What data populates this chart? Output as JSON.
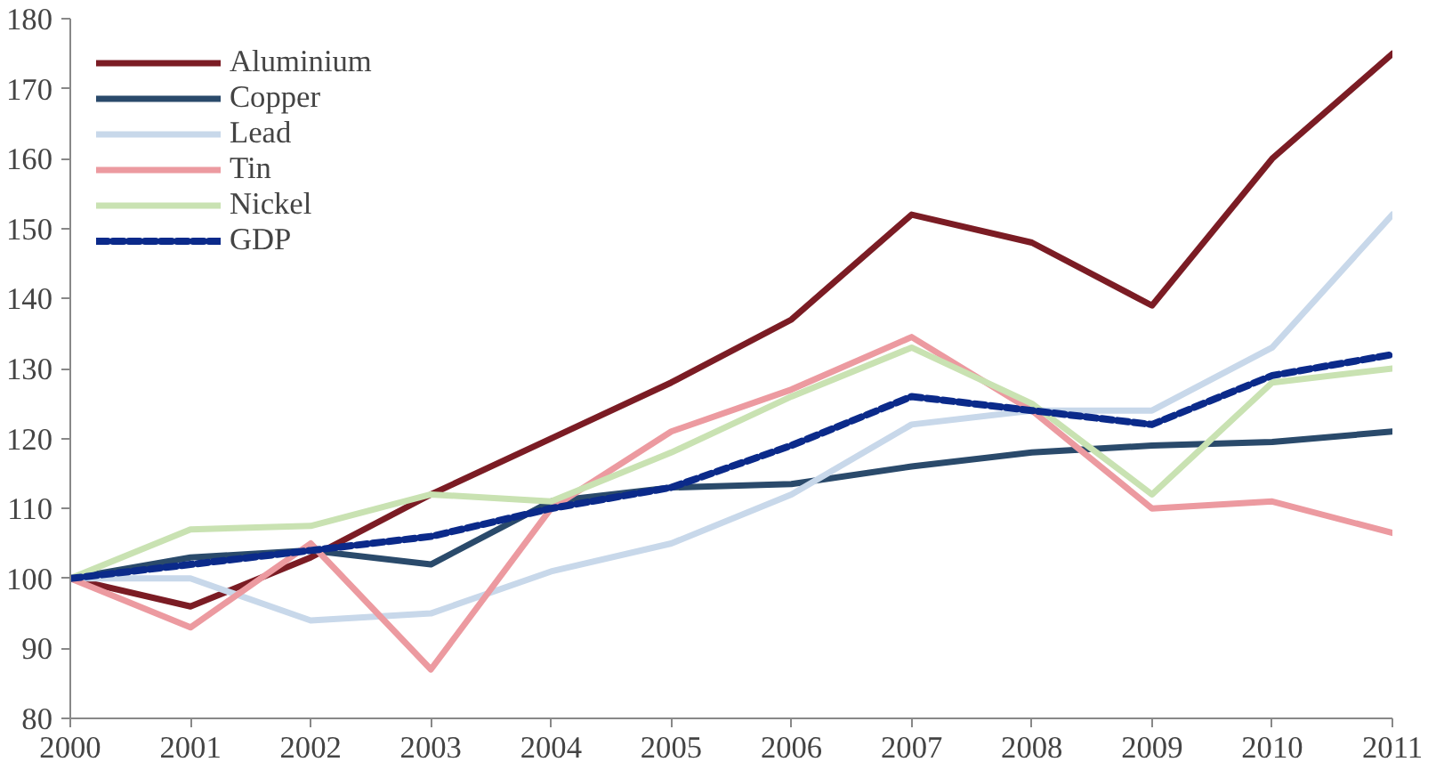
{
  "chart_data": {
    "type": "line",
    "x": [
      2000,
      2001,
      2002,
      2003,
      2004,
      2005,
      2006,
      2007,
      2008,
      2009,
      2010,
      2011
    ],
    "series": [
      {
        "name": "Aluminium",
        "color": "#7b1c24",
        "values": [
          100,
          96,
          103,
          112,
          120,
          128,
          137,
          152,
          148,
          139,
          160,
          175
        ]
      },
      {
        "name": "Copper",
        "color": "#2a4a6b",
        "values": [
          100,
          103,
          104,
          102,
          111,
          113,
          113.5,
          116,
          118,
          119,
          119.5,
          121
        ]
      },
      {
        "name": "Lead",
        "color": "#c8d8ea",
        "values": [
          100,
          100,
          94,
          95,
          101,
          105,
          112,
          122,
          124,
          124,
          133,
          152
        ]
      },
      {
        "name": "Tin",
        "color": "#ec9aa0",
        "values": [
          100,
          93,
          105,
          87,
          110,
          121,
          127,
          134.5,
          124,
          110,
          111,
          106.5
        ]
      },
      {
        "name": "Nickel",
        "color": "#c9e2b2",
        "values": [
          100,
          107,
          107.5,
          112,
          111,
          118,
          126,
          133,
          125,
          112,
          128,
          130
        ]
      },
      {
        "name": "GDP",
        "color": "#0b2a8a",
        "values": [
          100,
          102,
          104,
          106,
          110,
          113,
          119,
          126,
          124,
          122,
          129,
          132
        ],
        "line_style": "dashed"
      }
    ],
    "xlim": [
      2000,
      2011
    ],
    "xticks": [
      2000,
      2001,
      2002,
      2003,
      2004,
      2005,
      2006,
      2007,
      2008,
      2009,
      2010,
      2011
    ],
    "ylim": [
      80,
      180
    ],
    "yticks": [
      80,
      90,
      100,
      110,
      120,
      130,
      140,
      150,
      160,
      170,
      180
    ],
    "grid": false,
    "legend": "top left",
    "line_style": "solid",
    "marker": "none"
  }
}
